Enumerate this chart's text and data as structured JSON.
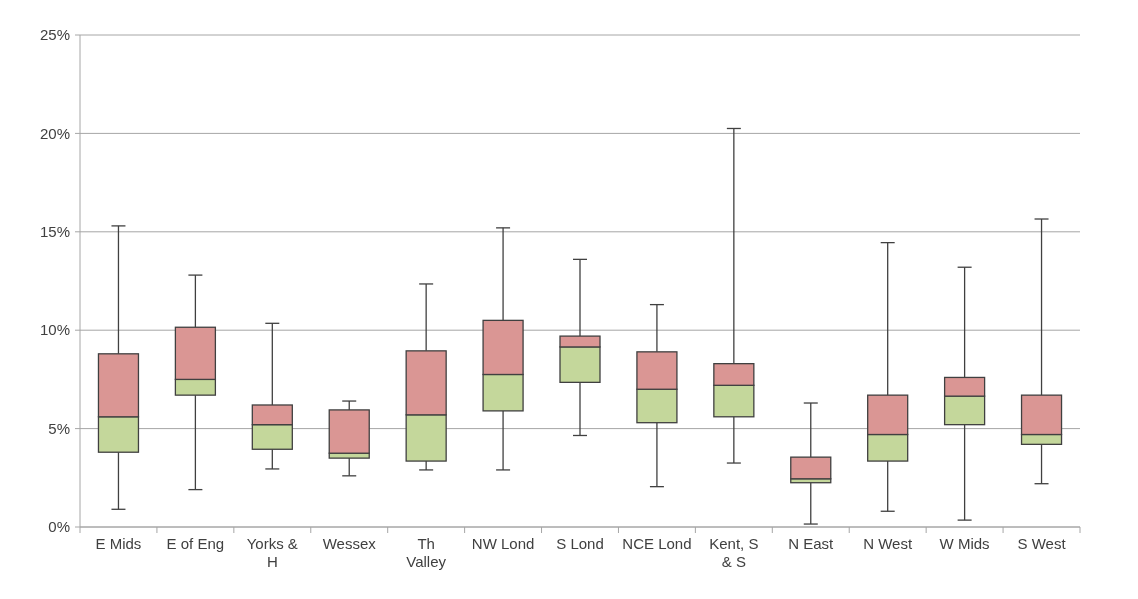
{
  "chart_data": {
    "type": "box",
    "categories": [
      "E Mids",
      "E of Eng",
      "Yorks & H",
      "Wessex",
      "Th Valley",
      "NW Lond",
      "S Lond",
      "NCE Lond",
      "Kent, S & S",
      "N East",
      "N West",
      "W Mids",
      "S West"
    ],
    "boxes": [
      {
        "low": 0.9,
        "q1": 3.8,
        "median": 5.6,
        "q3": 8.8,
        "high": 15.3
      },
      {
        "low": 1.9,
        "q1": 6.7,
        "median": 7.5,
        "q3": 10.15,
        "high": 12.8
      },
      {
        "low": 2.95,
        "q1": 3.95,
        "median": 5.2,
        "q3": 6.2,
        "high": 10.35
      },
      {
        "low": 2.6,
        "q1": 3.5,
        "median": 3.75,
        "q3": 5.95,
        "high": 6.4
      },
      {
        "low": 2.9,
        "q1": 3.35,
        "median": 5.7,
        "q3": 8.95,
        "high": 12.35
      },
      {
        "low": 2.9,
        "q1": 5.9,
        "median": 7.75,
        "q3": 10.5,
        "high": 15.2
      },
      {
        "low": 4.65,
        "q1": 7.35,
        "median": 9.15,
        "q3": 9.7,
        "high": 13.6
      },
      {
        "low": 2.05,
        "q1": 5.3,
        "median": 7.0,
        "q3": 8.9,
        "high": 11.3
      },
      {
        "low": 3.25,
        "q1": 5.6,
        "median": 7.2,
        "q3": 8.3,
        "high": 20.25
      },
      {
        "low": 0.15,
        "q1": 2.25,
        "median": 2.45,
        "q3": 3.55,
        "high": 6.3
      },
      {
        "low": 0.8,
        "q1": 3.35,
        "median": 4.7,
        "q3": 6.7,
        "high": 14.45
      },
      {
        "low": 0.35,
        "q1": 5.2,
        "median": 6.65,
        "q3": 7.6,
        "high": 13.2
      },
      {
        "low": 2.2,
        "q1": 4.2,
        "median": 4.7,
        "q3": 6.7,
        "high": 15.65
      }
    ],
    "color": "#da9694",
    "colors": [
      "#c4d79b",
      "#c4d79b",
      "#c4d79b",
      "#c4d79b",
      "#c4d79b",
      "#c4d79b",
      "#c4d79b",
      "#c4d79b",
      "#c4d79b",
      "#c4d79b",
      "#c4d79b",
      "#c4d79b",
      "#c4d79b"
    ],
    "ylim": [
      0,
      25
    ],
    "yticks": [
      {
        "value": 0,
        "label": "0%"
      },
      {
        "value": 5,
        "label": "5%"
      },
      {
        "value": 10,
        "label": "10%"
      },
      {
        "value": 15,
        "label": "15%"
      },
      {
        "value": 20,
        "label": "20%"
      },
      {
        "value": 25,
        "label": "25%"
      }
    ],
    "grid": "y"
  }
}
